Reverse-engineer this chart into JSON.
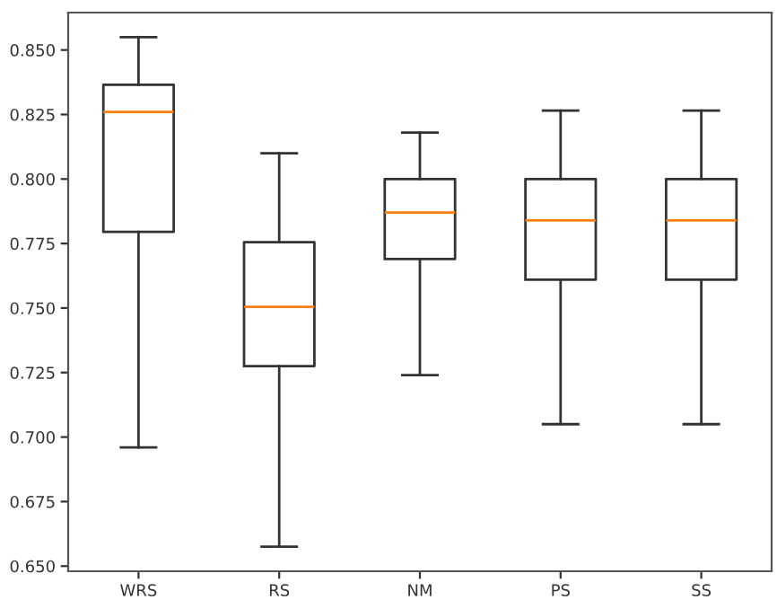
{
  "chart_data": {
    "type": "box",
    "categories": [
      "WRS",
      "RS",
      "NM",
      "PS",
      "SS"
    ],
    "boxes": [
      {
        "low": 0.696,
        "q1": 0.7795,
        "median": 0.826,
        "q3": 0.8365,
        "high": 0.855
      },
      {
        "low": 0.6575,
        "q1": 0.7275,
        "median": 0.7505,
        "q3": 0.7755,
        "high": 0.81
      },
      {
        "low": 0.724,
        "q1": 0.769,
        "median": 0.787,
        "q3": 0.8,
        "high": 0.818
      },
      {
        "low": 0.705,
        "q1": 0.761,
        "median": 0.784,
        "q3": 0.8,
        "high": 0.8265
      },
      {
        "low": 0.705,
        "q1": 0.761,
        "median": 0.784,
        "q3": 0.8,
        "high": 0.8265
      }
    ],
    "ylim": [
      0.648,
      0.8645
    ],
    "yticks": [
      {
        "value": 0.65,
        "label": "0.650"
      },
      {
        "value": 0.675,
        "label": "0.675"
      },
      {
        "value": 0.7,
        "label": "0.700"
      },
      {
        "value": 0.725,
        "label": "0.725"
      },
      {
        "value": 0.75,
        "label": "0.750"
      },
      {
        "value": 0.775,
        "label": "0.775"
      },
      {
        "value": 0.8,
        "label": "0.800"
      },
      {
        "value": 0.825,
        "label": "0.825"
      },
      {
        "value": 0.85,
        "label": "0.850"
      }
    ],
    "grid": false,
    "legend": false
  }
}
